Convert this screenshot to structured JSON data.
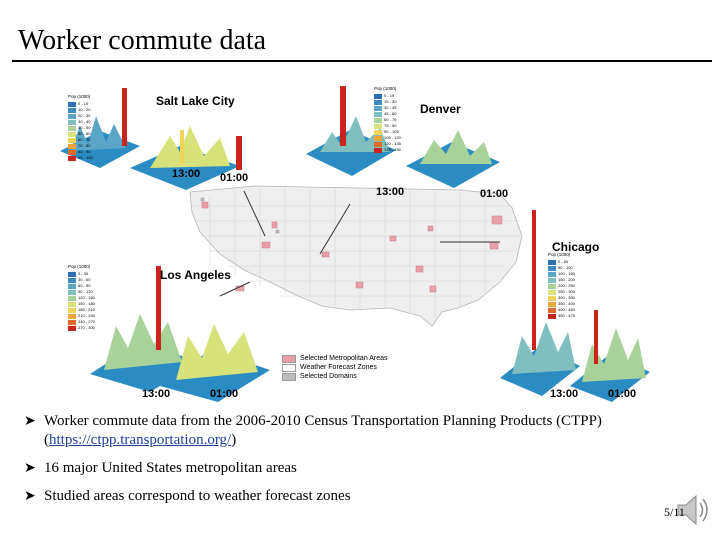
{
  "slide": {
    "title": "Worker commute data",
    "page_number": "5/11"
  },
  "figure": {
    "cities": [
      "Salt Lake City",
      "Denver",
      "Los Angeles",
      "Chicago"
    ],
    "times": {
      "start": "13:00",
      "end": "01:00"
    },
    "pop_legend_title": "Pop (1000)",
    "pop_legends": {
      "slc": [
        {
          "label": "0 - 10",
          "color": "#2c6fb6"
        },
        {
          "label": "10 - 20",
          "color": "#3d8bc4"
        },
        {
          "label": "20 - 30",
          "color": "#5aa6c9"
        },
        {
          "label": "30 - 40",
          "color": "#7fbfbf"
        },
        {
          "label": "40 - 50",
          "color": "#a8d29a"
        },
        {
          "label": "50 - 60",
          "color": "#d7e27a"
        },
        {
          "label": "60 - 70",
          "color": "#f1d35a"
        },
        {
          "label": "70 - 80",
          "color": "#f0a43c"
        },
        {
          "label": "80 - 90",
          "color": "#e36b2a"
        },
        {
          "label": "90 - 100",
          "color": "#c8261d"
        }
      ],
      "den": [
        {
          "label": "0 - 15",
          "color": "#2c6fb6"
        },
        {
          "label": "15 - 30",
          "color": "#3d8bc4"
        },
        {
          "label": "30 - 45",
          "color": "#5aa6c9"
        },
        {
          "label": "45 - 60",
          "color": "#7fbfbf"
        },
        {
          "label": "60 - 75",
          "color": "#a8d29a"
        },
        {
          "label": "75 - 90",
          "color": "#d7e27a"
        },
        {
          "label": "90 - 105",
          "color": "#f1d35a"
        },
        {
          "label": "105 - 120",
          "color": "#f0a43c"
        },
        {
          "label": "120 - 135",
          "color": "#e36b2a"
        },
        {
          "label": "135 - 150",
          "color": "#c8261d"
        }
      ],
      "la": [
        {
          "label": "0 - 30",
          "color": "#2c6fb6"
        },
        {
          "label": "30 - 60",
          "color": "#3d8bc4"
        },
        {
          "label": "60 - 90",
          "color": "#5aa6c9"
        },
        {
          "label": "90 - 120",
          "color": "#7fbfbf"
        },
        {
          "label": "120 - 150",
          "color": "#a8d29a"
        },
        {
          "label": "150 - 180",
          "color": "#d7e27a"
        },
        {
          "label": "180 - 210",
          "color": "#f1d35a"
        },
        {
          "label": "210 - 240",
          "color": "#f0a43c"
        },
        {
          "label": "240 - 270",
          "color": "#e36b2a"
        },
        {
          "label": "270 - 300",
          "color": "#c8261d"
        }
      ],
      "chi": [
        {
          "label": "0 - 50",
          "color": "#2c6fb6"
        },
        {
          "label": "50 - 100",
          "color": "#3d8bc4"
        },
        {
          "label": "100 - 150",
          "color": "#5aa6c9"
        },
        {
          "label": "150 - 200",
          "color": "#7fbfbf"
        },
        {
          "label": "200 - 250",
          "color": "#a8d29a"
        },
        {
          "label": "250 - 300",
          "color": "#d7e27a"
        },
        {
          "label": "300 - 350",
          "color": "#f1d35a"
        },
        {
          "label": "350 - 400",
          "color": "#f0a43c"
        },
        {
          "label": "400 - 450",
          "color": "#e36b2a"
        },
        {
          "label": "450 - 475",
          "color": "#c8261d"
        }
      ]
    },
    "map_legend": [
      {
        "label": "Selected Metropolitan Areas",
        "color": "#e8a0a8"
      },
      {
        "label": "Weather Forecast Zones",
        "color": "#ffffff"
      },
      {
        "label": "Selected Domains",
        "color": "#bdbdbd"
      }
    ]
  },
  "bullets": [
    {
      "pre": "Worker commute data from the 2006-2010 Census Transportation Planning Products (CTPP) (",
      "link": "https://ctpp.transportation.org/",
      "post": ")"
    },
    {
      "pre": "16 major United States metropolitan areas",
      "link": "",
      "post": ""
    },
    {
      "pre": "Studied areas correspond to weather forecast zones",
      "link": "",
      "post": ""
    }
  ],
  "colors": {
    "surface": "#2b8cc4",
    "peak": "#c8261d",
    "map_fill": "#efefef",
    "metro": "#e8a0a8",
    "link": "#1f3f9a"
  }
}
